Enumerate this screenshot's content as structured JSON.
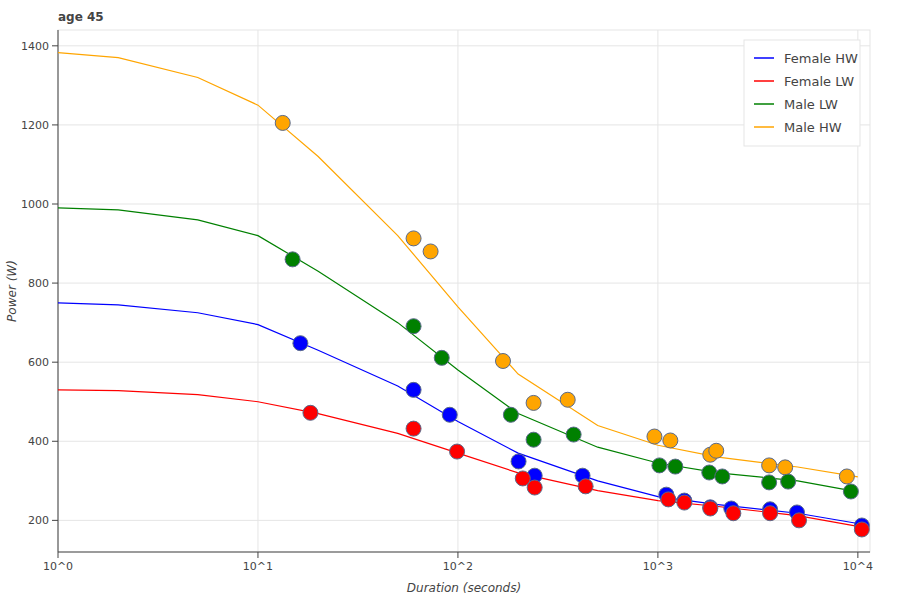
{
  "chart_data": {
    "type": "scatter",
    "title": "age 45",
    "x_label": "Duration (seconds)",
    "y_label": "Power (W)",
    "log": "x",
    "grid": true,
    "legend": "top_right",
    "xlim": [
      1,
      11500
    ],
    "ylim": [
      120,
      1440
    ],
    "xticks": [
      {
        "value": 1,
        "label": "10^0"
      },
      {
        "value": 10,
        "label": "10^1"
      },
      {
        "value": 100,
        "label": "10^2"
      },
      {
        "value": 1000,
        "label": "10^3"
      },
      {
        "value": 10000,
        "label": "10^4"
      }
    ],
    "yticks": [
      200,
      400,
      600,
      800,
      1000,
      1200,
      1400
    ],
    "series": [
      {
        "name": "Female HW",
        "type": "line",
        "color": "#0000ff",
        "x": [
          1,
          2,
          5,
          10,
          20,
          50,
          100,
          200,
          500,
          1000,
          2000,
          5000,
          10000
        ],
        "values": [
          750,
          745,
          725,
          695,
          630,
          540,
          450,
          370,
          300,
          260,
          240,
          218,
          192
        ]
      },
      {
        "name": "Female LW",
        "type": "line",
        "color": "#ff0000",
        "x": [
          1,
          2,
          5,
          10,
          20,
          50,
          100,
          200,
          500,
          1000,
          2000,
          5000,
          10000
        ],
        "values": [
          530,
          528,
          518,
          500,
          470,
          420,
          370,
          320,
          275,
          250,
          235,
          212,
          185
        ]
      },
      {
        "name": "Male LW",
        "type": "line",
        "color": "#008000",
        "x": [
          1,
          2,
          5,
          10,
          20,
          50,
          100,
          200,
          500,
          1000,
          2000,
          5000,
          10000
        ],
        "values": [
          990,
          985,
          960,
          920,
          830,
          700,
          580,
          470,
          385,
          345,
          320,
          300,
          272
        ]
      },
      {
        "name": "Male HW",
        "type": "line",
        "color": "#ffa500",
        "x": [
          1,
          2,
          5,
          10,
          20,
          50,
          100,
          200,
          500,
          1000,
          2000,
          5000,
          10000
        ],
        "values": [
          1383,
          1370,
          1320,
          1250,
          1120,
          920,
          740,
          570,
          440,
          390,
          360,
          335,
          310
        ]
      },
      {
        "type": "scatter",
        "color": "#ffa500",
        "marker": "circle",
        "x": [
          13.3,
          60,
          73,
          168,
          239,
          354,
          961,
          1154,
          1828,
          1958,
          3600,
          4330,
          8810
        ],
        "values": [
          1205,
          913,
          880,
          603,
          497,
          505,
          412,
          402,
          366,
          376,
          339,
          334,
          311
        ]
      },
      {
        "type": "scatter",
        "color": "#008000",
        "marker": "circle",
        "x": [
          14.9,
          60,
          83,
          184,
          239,
          379,
          1018,
          1222,
          1807,
          2099,
          3600,
          4480,
          9230
        ],
        "values": [
          860,
          691,
          611,
          467,
          404,
          417,
          339,
          336,
          321,
          311,
          296,
          298,
          273
        ]
      },
      {
        "type": "scatter",
        "color": "#0000ff",
        "marker": "circle",
        "x": [
          16.3,
          60,
          91,
          201,
          242,
          420,
          1102,
          1356,
          1828,
          2328,
          3640,
          4960,
          10470
        ],
        "values": [
          648,
          530,
          467,
          349,
          313,
          313,
          265,
          250,
          233,
          230,
          228,
          220,
          187
        ]
      },
      {
        "type": "scatter",
        "color": "#ff0000",
        "marker": "circle",
        "x": [
          18.3,
          60,
          99,
          211,
          242,
          435,
          1128,
          1356,
          1828,
          2384,
          3640,
          5080,
          10470
        ],
        "values": [
          472,
          432,
          374,
          306,
          283,
          286,
          253,
          245,
          230,
          218,
          218,
          200,
          177
        ]
      }
    ]
  }
}
